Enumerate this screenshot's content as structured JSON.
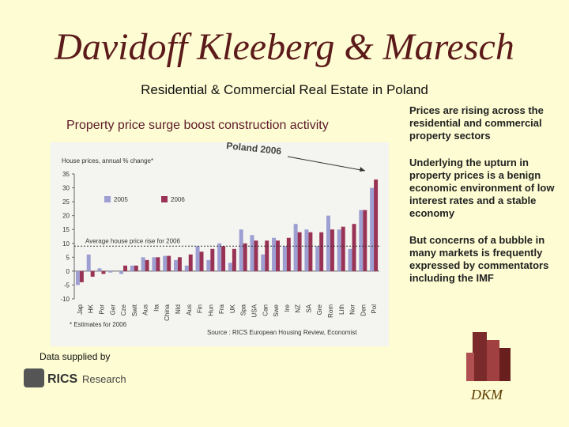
{
  "header": {
    "title": "Davidoff Kleeberg & Maresch",
    "subtitle": "Residential & Commercial Real Estate in Poland"
  },
  "chart_data": {
    "type": "bar",
    "title": "Property price surge boost construction activity",
    "y_label": "House prices, annual % change*",
    "categories": [
      "Jap",
      "HK",
      "Por",
      "Ger",
      "Cze",
      "Swit",
      "Aus",
      "Ita",
      "China",
      "Nld",
      "Aus",
      "Fin",
      "Hun",
      "Fra",
      "UK",
      "Spa",
      "USA",
      "Can",
      "Swe",
      "Ire",
      "NZ",
      "SA",
      "Gre",
      "Rom",
      "Lith",
      "Nor",
      "Den",
      "Pol"
    ],
    "series": [
      {
        "name": "2005",
        "color": "#9d9ed2",
        "values": [
          -5,
          6,
          1,
          -0.5,
          -1,
          2,
          5,
          5,
          5.5,
          4,
          2,
          9,
          4,
          10,
          3,
          15,
          13,
          6,
          12,
          9,
          17,
          15,
          9,
          20,
          15,
          8,
          22,
          30
        ]
      },
      {
        "name": "2006",
        "color": "#993355",
        "values": [
          -4,
          -2,
          -1,
          0,
          2,
          2,
          4,
          5,
          5.5,
          5,
          6,
          7,
          8,
          9,
          8,
          10,
          11,
          11,
          11,
          12,
          14,
          14,
          14,
          15,
          16,
          17,
          22,
          33
        ]
      }
    ],
    "ylim": [
      -10,
      35
    ],
    "yticks": [
      -10,
      -5,
      0,
      5,
      10,
      15,
      20,
      25,
      30,
      35
    ],
    "grid": false,
    "reference_line": {
      "value": 9,
      "label": "Average house price rise for 2006"
    },
    "annotation": "Poland 2006",
    "footnote": "* Estimates for 2006",
    "source": "Source : RICS European Housing Review, Economist"
  },
  "bullets": [
    "Prices are rising across the residential and commercial property sectors",
    "Underlying the upturn in property prices is a benign economic environment of low interest rates and a stable economy",
    "But concerns of a bubble in many markets is frequently expressed by commentators including the IMF"
  ],
  "credit": "Data supplied by",
  "logos": {
    "rics": "RICS",
    "research": "Research",
    "dkm": "DKM"
  }
}
